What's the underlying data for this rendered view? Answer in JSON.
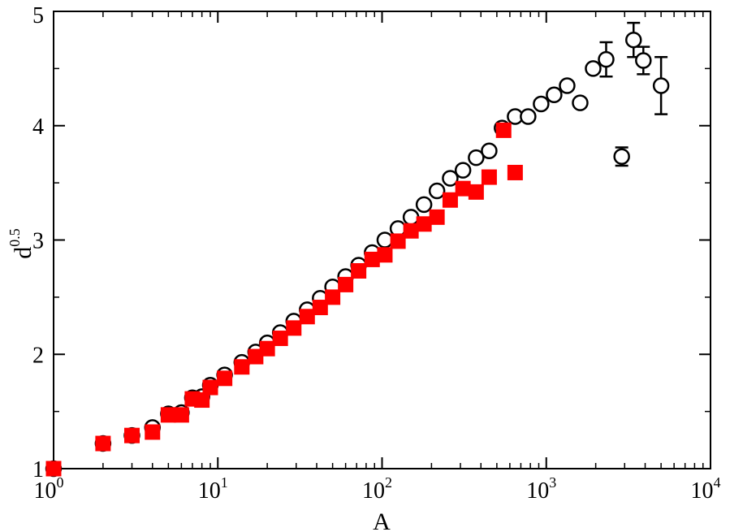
{
  "chart_data": {
    "type": "scatter",
    "title": "",
    "xlabel": "A",
    "ylabel_base": "d",
    "ylabel_sup": "0.5",
    "xscale": "log",
    "xlim": [
      1,
      10000
    ],
    "ylim": [
      1,
      5
    ],
    "grid": false,
    "x_ticks": [
      {
        "base": "10",
        "exp": "0",
        "value": 1
      },
      {
        "base": "10",
        "exp": "1",
        "value": 10
      },
      {
        "base": "10",
        "exp": "2",
        "value": 100
      },
      {
        "base": "10",
        "exp": "3",
        "value": 1000
      },
      {
        "base": "10",
        "exp": "4",
        "value": 10000
      }
    ],
    "y_ticks": [
      {
        "label": "1",
        "value": 1
      },
      {
        "label": "2",
        "value": 2
      },
      {
        "label": "3",
        "value": 3
      },
      {
        "label": "4",
        "value": 4
      },
      {
        "label": "5",
        "value": 5
      }
    ],
    "series": [
      {
        "marker": "open-circle",
        "color": "#000000",
        "points": [
          {
            "x": 1,
            "y": 1.0
          },
          {
            "x": 2,
            "y": 1.22
          },
          {
            "x": 3,
            "y": 1.29
          },
          {
            "x": 4,
            "y": 1.36
          },
          {
            "x": 5,
            "y": 1.48
          },
          {
            "x": 6,
            "y": 1.49
          },
          {
            "x": 7,
            "y": 1.62
          },
          {
            "x": 8,
            "y": 1.63
          },
          {
            "x": 9,
            "y": 1.73
          },
          {
            "x": 11,
            "y": 1.82
          },
          {
            "x": 14,
            "y": 1.93
          },
          {
            "x": 17,
            "y": 2.02
          },
          {
            "x": 20,
            "y": 2.1
          },
          {
            "x": 24,
            "y": 2.19
          },
          {
            "x": 29,
            "y": 2.29
          },
          {
            "x": 35,
            "y": 2.39
          },
          {
            "x": 42,
            "y": 2.49
          },
          {
            "x": 50,
            "y": 2.59
          },
          {
            "x": 60,
            "y": 2.68
          },
          {
            "x": 72,
            "y": 2.78
          },
          {
            "x": 87,
            "y": 2.89
          },
          {
            "x": 104,
            "y": 3.0
          },
          {
            "x": 125,
            "y": 3.1
          },
          {
            "x": 150,
            "y": 3.2
          },
          {
            "x": 180,
            "y": 3.31
          },
          {
            "x": 216,
            "y": 3.43
          },
          {
            "x": 260,
            "y": 3.54
          },
          {
            "x": 311,
            "y": 3.61
          },
          {
            "x": 374,
            "y": 3.72
          },
          {
            "x": 449,
            "y": 3.78
          },
          {
            "x": 538,
            "y": 3.98
          },
          {
            "x": 646,
            "y": 4.08
          },
          {
            "x": 775,
            "y": 4.08
          },
          {
            "x": 930,
            "y": 4.19
          },
          {
            "x": 1116,
            "y": 4.27
          },
          {
            "x": 1340,
            "y": 4.35
          },
          {
            "x": 1608,
            "y": 4.2
          },
          {
            "x": 1929,
            "y": 4.5
          },
          {
            "x": 2315,
            "y": 4.58,
            "err": 0.15
          },
          {
            "x": 2880,
            "y": 3.73,
            "err": 0.08
          },
          {
            "x": 3400,
            "y": 4.75,
            "err": 0.15
          },
          {
            "x": 3900,
            "y": 4.57,
            "err": 0.12
          },
          {
            "x": 5000,
            "y": 4.35,
            "err": 0.25
          }
        ]
      },
      {
        "marker": "filled-square",
        "color": "#ff0000",
        "points": [
          {
            "x": 1,
            "y": 1.0
          },
          {
            "x": 2,
            "y": 1.22
          },
          {
            "x": 3,
            "y": 1.29
          },
          {
            "x": 4,
            "y": 1.32
          },
          {
            "x": 5,
            "y": 1.47
          },
          {
            "x": 6,
            "y": 1.47
          },
          {
            "x": 7,
            "y": 1.61
          },
          {
            "x": 8,
            "y": 1.6
          },
          {
            "x": 9,
            "y": 1.71
          },
          {
            "x": 11,
            "y": 1.79
          },
          {
            "x": 14,
            "y": 1.89
          },
          {
            "x": 17,
            "y": 1.98
          },
          {
            "x": 20,
            "y": 2.05
          },
          {
            "x": 24,
            "y": 2.14
          },
          {
            "x": 29,
            "y": 2.23
          },
          {
            "x": 35,
            "y": 2.33
          },
          {
            "x": 42,
            "y": 2.41
          },
          {
            "x": 50,
            "y": 2.5
          },
          {
            "x": 60,
            "y": 2.61
          },
          {
            "x": 72,
            "y": 2.73
          },
          {
            "x": 87,
            "y": 2.83
          },
          {
            "x": 104,
            "y": 2.87
          },
          {
            "x": 125,
            "y": 2.99
          },
          {
            "x": 150,
            "y": 3.08
          },
          {
            "x": 180,
            "y": 3.14
          },
          {
            "x": 216,
            "y": 3.2
          },
          {
            "x": 260,
            "y": 3.35
          },
          {
            "x": 311,
            "y": 3.45
          },
          {
            "x": 374,
            "y": 3.42
          },
          {
            "x": 449,
            "y": 3.55
          },
          {
            "x": 550,
            "y": 3.96
          },
          {
            "x": 646,
            "y": 3.59
          }
        ]
      }
    ]
  }
}
